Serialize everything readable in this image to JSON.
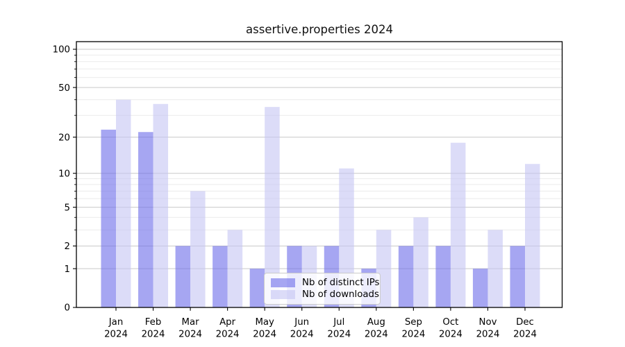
{
  "title": "assertive.properties 2024",
  "legend": {
    "items": [
      {
        "label": "Nb of distinct IPs",
        "swatch_color": "rgba(107,107,233,0.6)"
      },
      {
        "label": "Nb of downloads",
        "swatch_color": "rgba(197,197,243,0.6)"
      }
    ]
  },
  "chart_data": {
    "type": "bar",
    "title": "assertive.properties 2024",
    "categories": [
      "Jan 2024",
      "Feb 2024",
      "Mar 2024",
      "Apr 2024",
      "May 2024",
      "Jun 2024",
      "Jul 2024",
      "Aug 2024",
      "Sep 2024",
      "Oct 2024",
      "Nov 2024",
      "Dec 2024"
    ],
    "series": [
      {
        "name": "Nb of distinct IPs",
        "color": "rgba(107,107,233,0.6)",
        "values": [
          23,
          22,
          2,
          2,
          1,
          2,
          2,
          1,
          2,
          2,
          1,
          2
        ]
      },
      {
        "name": "Nb of downloads",
        "color": "rgba(197,197,243,0.6)",
        "values": [
          40,
          37,
          7,
          3,
          35,
          2,
          11,
          3,
          4,
          18,
          3,
          12
        ]
      }
    ],
    "xlabel": "",
    "ylabel": "",
    "yscale": "log1p",
    "ylim": [
      0,
      115
    ],
    "yticks_major": [
      0,
      1,
      2,
      5,
      10,
      20,
      50,
      100
    ],
    "yticks_minor": [
      3,
      4,
      6,
      7,
      8,
      9,
      30,
      40,
      60,
      70,
      80,
      90
    ],
    "grid": true,
    "legend_position": "lower center",
    "colors": {
      "grid_major": "#c9c9c9",
      "grid_minor": "#ebebeb",
      "axis": "#000000",
      "text": "#000000"
    }
  }
}
